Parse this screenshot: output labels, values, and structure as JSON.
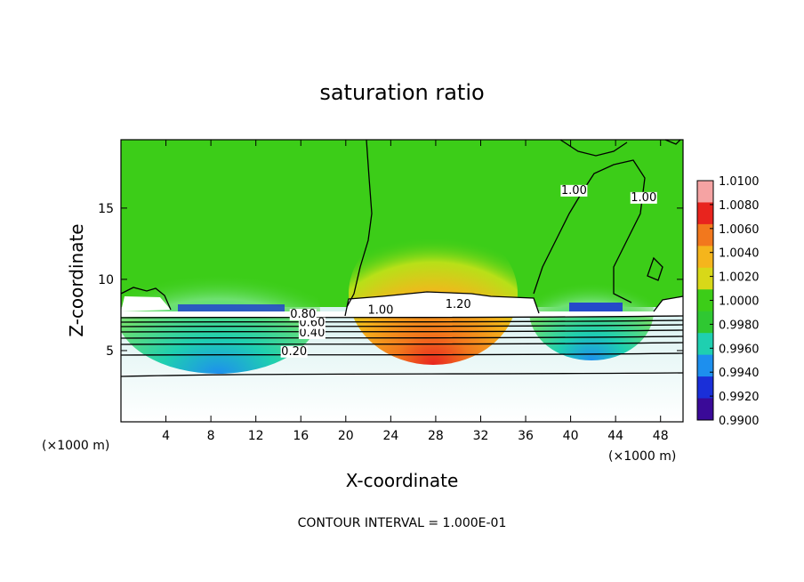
{
  "chart_data": {
    "type": "heatmap",
    "title": "saturation ratio",
    "xlabel": "X-coordinate",
    "ylabel": "Z-coordinate",
    "x_unit_label": "(×1000 m)",
    "x_ticks": [
      4,
      8,
      12,
      16,
      20,
      24,
      28,
      32,
      36,
      40,
      44,
      48
    ],
    "y_ticks": [
      5,
      10,
      15
    ],
    "xlim": [
      0,
      50
    ],
    "ylim": [
      0,
      19.8
    ],
    "colorbar": {
      "labels": [
        "1.0100",
        "1.0080",
        "1.0060",
        "1.0040",
        "1.0020",
        "1.0000",
        "0.9980",
        "0.9960",
        "0.9940",
        "0.9920",
        "0.9900"
      ],
      "colors": [
        "#f5a3a3",
        "#e8241e",
        "#f2781d",
        "#f5b51c",
        "#d8d818",
        "#3ccd18",
        "#2fc832",
        "#1fcfb0",
        "#1d8fee",
        "#1a2fd8",
        "#3a0a98"
      ]
    },
    "contour_labels": [
      {
        "text": "0.20",
        "x": 15.4,
        "z": 4.7
      },
      {
        "text": "0.40",
        "x": 17.0,
        "z": 6.0
      },
      {
        "text": "0.60",
        "x": 17.0,
        "z": 6.7
      },
      {
        "text": "0.80",
        "x": 16.2,
        "z": 7.3
      },
      {
        "text": "1.00",
        "x": 23.1,
        "z": 7.6
      },
      {
        "text": "1.20",
        "x": 30.0,
        "z": 8.0
      },
      {
        "text": "1.00",
        "x": 40.3,
        "z": 16.0
      },
      {
        "text": "1.00",
        "x": 46.5,
        "z": 15.5
      }
    ],
    "footer": "CONTOUR INTERVAL = 1.000E-01"
  }
}
